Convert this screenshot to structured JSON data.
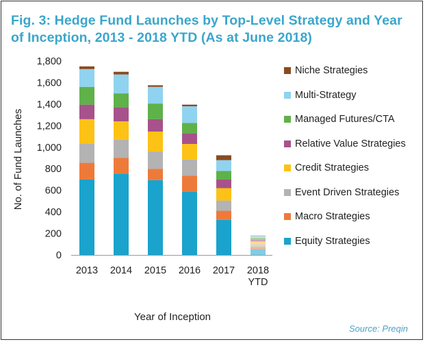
{
  "title": "Fig. 3: Hedge Fund Launches by Top-Level Strategy and Year of Inception, 2013 - 2018 YTD (As at June 2018)",
  "source": "Source: Preqin",
  "chart_data": {
    "type": "bar",
    "stacked": true,
    "title": "Fig. 3: Hedge Fund Launches by Top-Level Strategy and Year of Inception, 2013 - 2018 YTD (As at June 2018)",
    "xlabel": "Year of Inception",
    "ylabel": "No. of Fund Launches",
    "ylim": [
      0,
      1800
    ],
    "yticks": [
      0,
      200,
      400,
      600,
      800,
      1000,
      1200,
      1400,
      1600,
      1800
    ],
    "ytick_labels": [
      "0",
      "200",
      "400",
      "600",
      "800",
      "1,000",
      "1,200",
      "1,400",
      "1,600",
      "1,800"
    ],
    "categories": [
      "2013",
      "2014",
      "2015",
      "2016",
      "2017",
      "2018 YTD"
    ],
    "legend_position": "right",
    "series": [
      {
        "name": "Equity Strategies",
        "color": "#1aa3cc",
        "values": [
          700,
          755,
          695,
          585,
          325,
          55
        ]
      },
      {
        "name": "Macro Strategies",
        "color": "#ee7a3a",
        "values": [
          155,
          145,
          105,
          150,
          85,
          20
        ]
      },
      {
        "name": "Event Driven Strategies",
        "color": "#b3b3b3",
        "values": [
          180,
          170,
          160,
          150,
          95,
          25
        ]
      },
      {
        "name": "Credit Strategies",
        "color": "#fcc216",
        "values": [
          225,
          170,
          185,
          145,
          115,
          25
        ]
      },
      {
        "name": "Relative Value Strategies",
        "color": "#a7528a",
        "values": [
          135,
          130,
          115,
          100,
          80,
          20
        ]
      },
      {
        "name": "Managed Futures/CTA",
        "color": "#5fb14a",
        "values": [
          165,
          130,
          145,
          95,
          80,
          15
        ]
      },
      {
        "name": "Multi-Strategy",
        "color": "#8fd3f0",
        "values": [
          165,
          175,
          155,
          155,
          100,
          15
        ]
      },
      {
        "name": "Niche Strategies",
        "color": "#8b4a1f",
        "values": [
          25,
          25,
          15,
          15,
          45,
          5
        ]
      }
    ]
  }
}
